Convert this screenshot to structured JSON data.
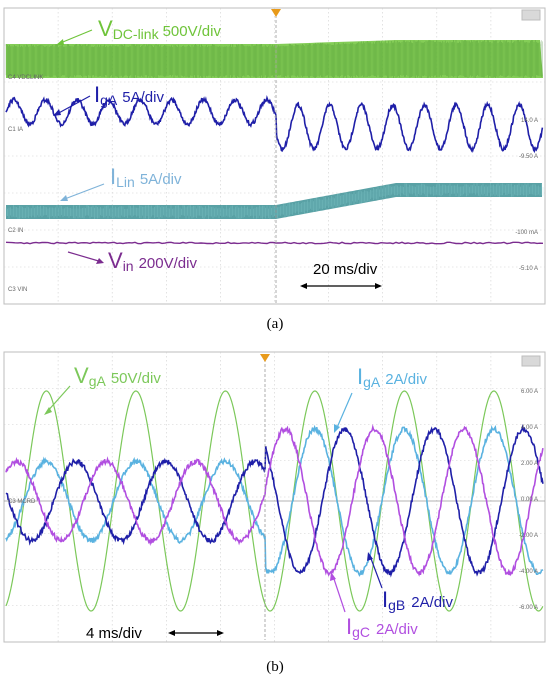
{
  "chart_data": [
    {
      "type": "line",
      "caption": "(a)",
      "time_per_div": "20 ms/div",
      "series": [
        {
          "name": "VDC-link",
          "label_main": "V",
          "label_sub": "DC-link",
          "scale": "500V/div",
          "color": "#6fc43a",
          "description": "DC-link voltage with ripple, slight rise after step"
        },
        {
          "name": "IgA",
          "label_main": "I",
          "label_sub": "gA",
          "scale": "5A/div",
          "color": "#1f1fa8",
          "cycles": 17,
          "amp_before": 0.55,
          "amp_after": 1.0
        },
        {
          "name": "ILin",
          "label_main": "I",
          "label_sub": "Lin",
          "scale": "5A/div",
          "color": "#2f8a8f",
          "level_before": 0.0,
          "level_after": 0.5
        },
        {
          "name": "Vin",
          "label_main": "V",
          "label_sub": "in",
          "scale": "200V/div",
          "color": "#7b2c8f",
          "value": 0
        }
      ],
      "channel_tags": [
        "C4 VDCLINK",
        "C1 IA",
        "C2 IN",
        "C3 VIN"
      ],
      "right_readouts": [
        "14.0 A",
        "-9.50 A",
        "-100 mA",
        "-5.10 A"
      ]
    },
    {
      "type": "line",
      "caption": "(b)",
      "time_per_div": "4 ms/div",
      "series": [
        {
          "name": "VgA",
          "label_main": "V",
          "label_sub": "gA",
          "scale": "50V/div",
          "color": "#7cc85a",
          "amp_before": 1.0,
          "amp_after": 1.0
        },
        {
          "name": "IgA",
          "label_main": "I",
          "label_sub": "gA",
          "scale": "2A/div",
          "color": "#5ab2e0",
          "amp_before": 0.3,
          "amp_after": 0.6
        },
        {
          "name": "IgB",
          "label_main": "I",
          "label_sub": "gB",
          "scale": "2A/div",
          "color": "#1f1fa8",
          "amp_before": 0.3,
          "amp_after": 0.6
        },
        {
          "name": "IgC",
          "label_main": "I",
          "label_sub": "gC",
          "scale": "2A/div",
          "color": "#b14fe0",
          "amp_before": 0.3,
          "amp_after": 0.6
        }
      ],
      "channel_tags": [
        "C3 MCRD"
      ],
      "right_ticks": [
        "6.00 A",
        "4.00 A",
        "2.00 A",
        "0.00 A",
        "-2.00 A",
        "-4.00 A",
        "-6.00 A"
      ],
      "cycles": 6
    }
  ]
}
